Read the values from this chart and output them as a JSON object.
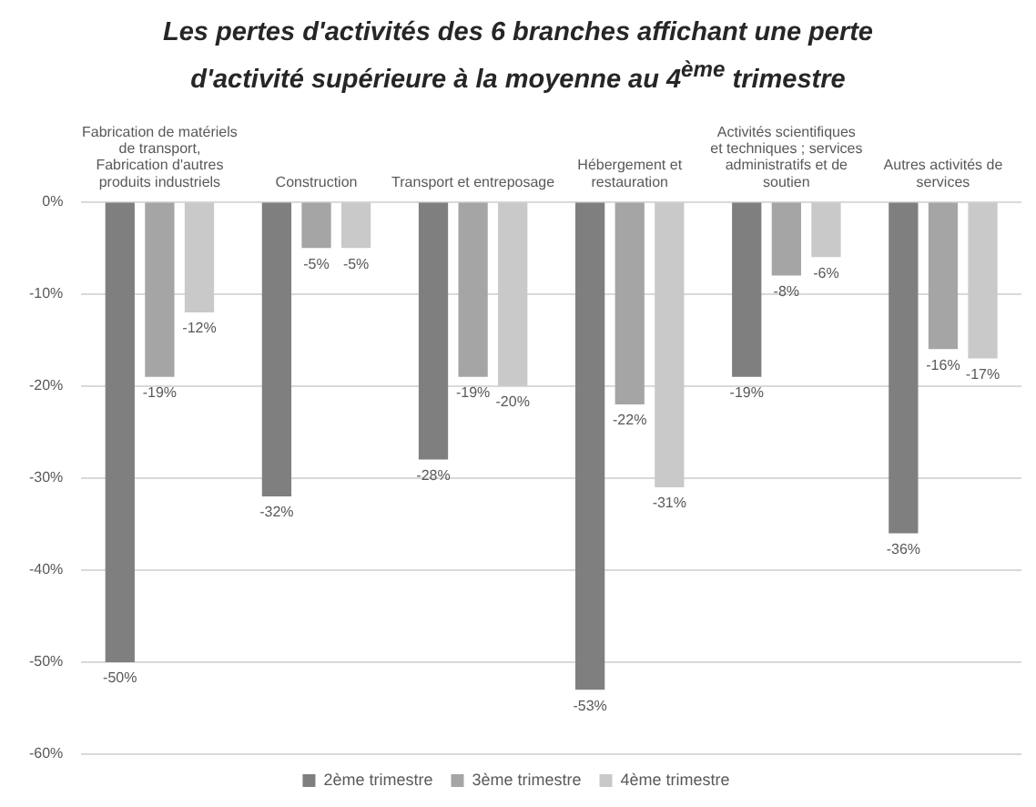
{
  "chart_data": {
    "type": "bar",
    "title": "Les pertes d'activités des 6 branches affichant une perte d'activité supérieure à la moyenne au 4$^{ème}$ trimestre",
    "categories": [
      "Fabrication de matériels de transport, Fabrication d'autres produits industriels",
      "Construction",
      "Transport et entreposage",
      "Hébergement et restauration",
      "Activités scientifiques et techniques ; services administratifs et de soutien",
      "Autres activités de services"
    ],
    "series": [
      {
        "name": "2ème trimestre",
        "color": "#7f7f7f",
        "values": [
          -50,
          -32,
          -28,
          -53,
          -19,
          -36
        ],
        "value_labels": [
          "-50%",
          "-32%",
          "-28%",
          "-53%",
          "-19%",
          "-36%"
        ]
      },
      {
        "name": "3ème trimestre",
        "color": "#a5a5a5",
        "values": [
          -19,
          -5,
          -19,
          -22,
          -8,
          -16
        ],
        "value_labels": [
          "-19%",
          "-5%",
          "-19%",
          "-22%",
          "-8%",
          "-16%"
        ]
      },
      {
        "name": "4ème trimestre",
        "color": "#c9c9c9",
        "values": [
          -12,
          -5,
          -20,
          -31,
          -6,
          -17
        ],
        "value_labels": [
          "-12%",
          "-5%",
          "-20%",
          "-31%",
          "-6%",
          "-17%"
        ]
      }
    ],
    "ylim": [
      -60,
      0
    ],
    "yticks": [
      {
        "value": 0,
        "label": "0%"
      },
      {
        "value": -10,
        "label": "-10%"
      },
      {
        "value": -20,
        "label": "-20%"
      },
      {
        "value": -30,
        "label": "-30%"
      },
      {
        "value": -40,
        "label": "-40%"
      },
      {
        "value": -50,
        "label": "-50%"
      },
      {
        "value": -60,
        "label": "-60%"
      }
    ],
    "grid": "y",
    "legend": "bottom"
  }
}
